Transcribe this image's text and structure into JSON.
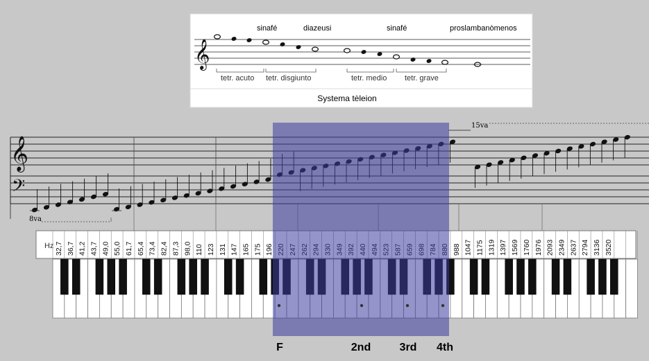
{
  "inset": {
    "labels_top": [
      "sinafé",
      "diazeusi",
      "sinafé",
      "proslambanòmenos"
    ],
    "tetrachords": [
      "tetr. acuto",
      "tetr. disgiunto",
      "tetr. medio",
      "tetr. grave"
    ],
    "caption": "Systema tèleion"
  },
  "staff": {
    "octave_low": "8va",
    "octave_high": "15va"
  },
  "keyboard": {
    "hz_label": "Hz",
    "frequencies": [
      "32,7",
      "36,7",
      "41,2",
      "43,7",
      "49,0",
      "55,0",
      "61,7",
      "65,4",
      "73,4",
      "82,4",
      "87,3",
      "98,0",
      "110",
      "123",
      "131",
      "147",
      "165",
      "175",
      "196",
      "220",
      "247",
      "262",
      "294",
      "330",
      "349",
      "392",
      "440",
      "494",
      "523",
      "587",
      "659",
      "698",
      "784",
      "880",
      "988",
      "1047",
      "1175",
      "1319",
      "1397",
      "1569",
      "1760",
      "1976",
      "2093",
      "2349",
      "2637",
      "2794",
      "3136",
      "3520"
    ]
  },
  "markers": [
    "F",
    "2nd",
    "3rd",
    "4th"
  ],
  "colors": {
    "background": "#c8c8c8",
    "highlight": "#3c3ca0",
    "inset_bg": "#ffffff"
  }
}
